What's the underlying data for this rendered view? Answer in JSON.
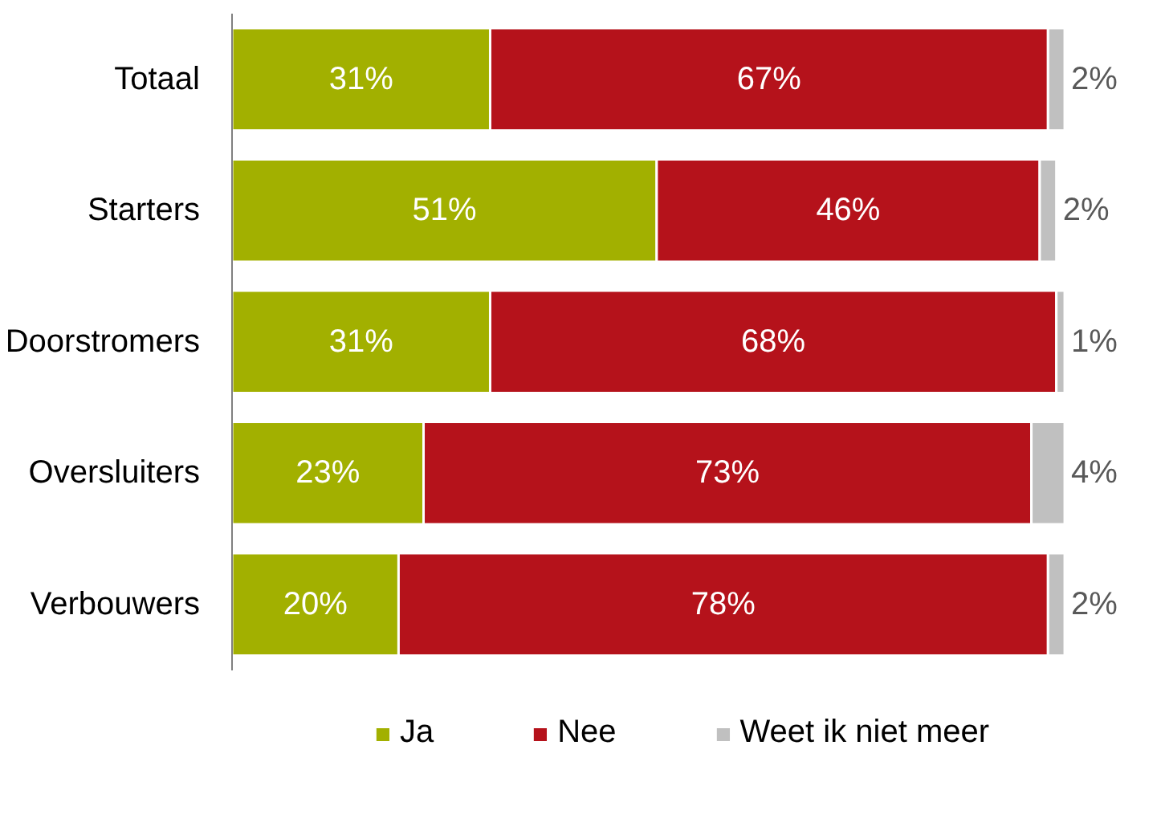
{
  "chart_data": {
    "type": "bar",
    "orientation": "horizontal",
    "stacked": true,
    "legend": "bottom",
    "tick_labels": "y",
    "categories": [
      "Totaal",
      "Starters",
      "Doorstromers",
      "Oversluiters",
      "Verbouwers"
    ],
    "series": [
      {
        "name": "Ja",
        "color": "#a2b000",
        "values": [
          31,
          51,
          31,
          23,
          20
        ],
        "value_labels": [
          "31%",
          "51%",
          "31%",
          "23%",
          "20%"
        ]
      },
      {
        "name": "Nee",
        "color": "#b5121b",
        "values": [
          67,
          46,
          68,
          73,
          78
        ],
        "value_labels": [
          "67%",
          "46%",
          "68%",
          "73%",
          "78%"
        ]
      },
      {
        "name": "Weet ik niet meer",
        "color": "#c0c0c0",
        "values": [
          2,
          2,
          1,
          4,
          2
        ],
        "value_labels": [
          "2%",
          "2%",
          "1%",
          "4%",
          "2%"
        ]
      }
    ]
  }
}
